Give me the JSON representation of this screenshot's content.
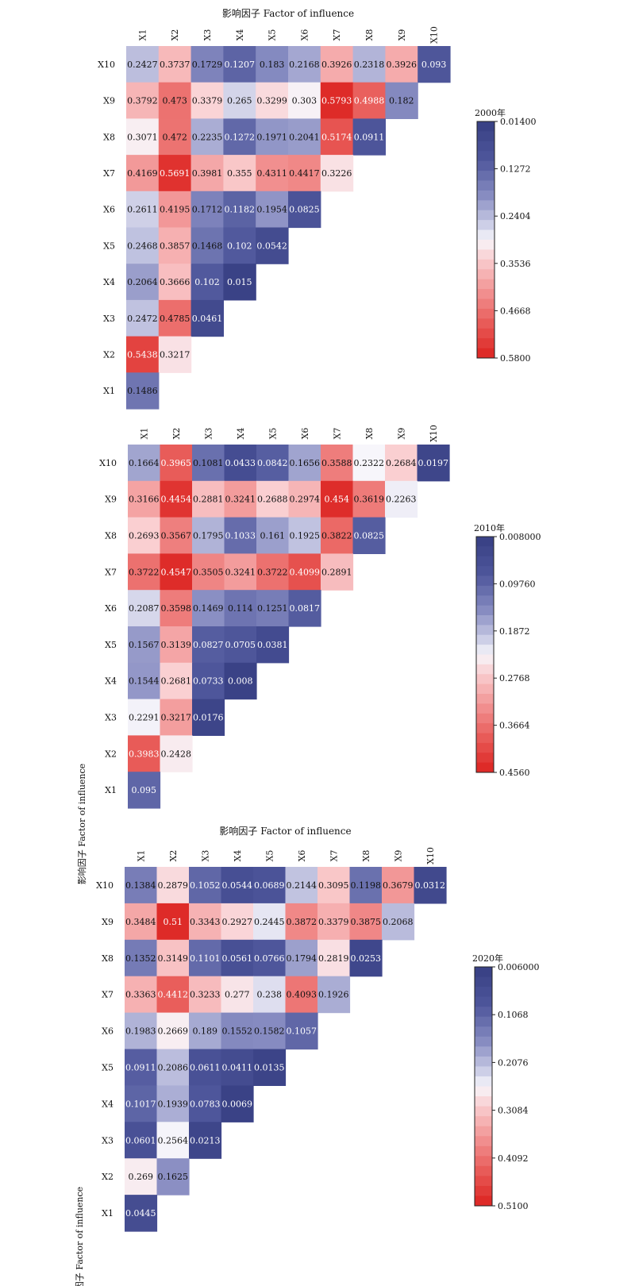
{
  "chart_data": [
    {
      "type": "heatmap",
      "title": "影响因子  Factor of influence",
      "xlabel": "",
      "ylabel": "",
      "x_labels": [
        "X1",
        "X2",
        "X3",
        "X4",
        "X5",
        "X6",
        "X7",
        "X8",
        "X9",
        "X10"
      ],
      "y_labels": [
        "X10",
        "X9",
        "X8",
        "X7",
        "X6",
        "X5",
        "X4",
        "X3",
        "X2",
        "X1"
      ],
      "colorbar": {
        "title": "2000年",
        "min": 0.014,
        "max": 0.58,
        "ticks": [
          "0.01400",
          "0.1272",
          "0.2404",
          "0.3536",
          "0.4668",
          "0.5800"
        ]
      },
      "values": [
        [
          "0.2427",
          "0.3737",
          "0.1729",
          "0.1207",
          "0.183",
          "0.2168",
          "0.3926",
          "0.2318",
          "0.3926",
          "0.093"
        ],
        [
          "0.3792",
          "0.473",
          "0.3379",
          "0.265",
          "0.3299",
          "0.303",
          "0.5793",
          "0.4988",
          "0.182"
        ],
        [
          "0.3071",
          "0.472",
          "0.2235",
          "0.1272",
          "0.1971",
          "0.2041",
          "0.5174",
          "0.0911"
        ],
        [
          "0.4169",
          "0.5691",
          "0.3981",
          "0.355",
          "0.4311",
          "0.4417",
          "0.3226"
        ],
        [
          "0.2611",
          "0.4195",
          "0.1712",
          "0.1182",
          "0.1954",
          "0.0825"
        ],
        [
          "0.2468",
          "0.3857",
          "0.1468",
          "0.102",
          "0.0542"
        ],
        [
          "0.2064",
          "0.3666",
          "0.102",
          "0.015"
        ],
        [
          "0.2472",
          "0.4785",
          "0.0461"
        ],
        [
          "0.5438",
          "0.3217"
        ],
        [
          "0.1486"
        ]
      ]
    },
    {
      "type": "heatmap",
      "title": "",
      "xlabel": "",
      "ylabel": "影响因子 Factor of influence",
      "x_labels": [
        "X1",
        "X2",
        "X3",
        "X4",
        "X5",
        "X6",
        "X7",
        "X8",
        "X9",
        "X10"
      ],
      "y_labels": [
        "X10",
        "X9",
        "X8",
        "X7",
        "X6",
        "X5",
        "X4",
        "X3",
        "X2",
        "X1"
      ],
      "colorbar": {
        "title": "2010年",
        "min": 0.008,
        "max": 0.456,
        "ticks": [
          "0.008000",
          "0.09760",
          "0.1872",
          "0.2768",
          "0.3664",
          "0.4560"
        ]
      },
      "values": [
        [
          "0.1664",
          "0.3965",
          "0.1081",
          "0.0433",
          "0.0842",
          "0.1656",
          "0.3588",
          "0.2322",
          "0.2684",
          "0.0197"
        ],
        [
          "0.3166",
          "0.4454",
          "0.2881",
          "0.3241",
          "0.2688",
          "0.2974",
          "0.454",
          "0.3619",
          "0.2263"
        ],
        [
          "0.2693",
          "0.3567",
          "0.1795",
          "0.1033",
          "0.161",
          "0.1925",
          "0.3822",
          "0.0825"
        ],
        [
          "0.3722",
          "0.4547",
          "0.3505",
          "0.3241",
          "0.3722",
          "0.4099",
          "0.2891"
        ],
        [
          "0.2087",
          "0.3598",
          "0.1469",
          "0.114",
          "0.1251",
          "0.0817"
        ],
        [
          "0.1567",
          "0.3139",
          "0.0827",
          "0.0705",
          "0.0381"
        ],
        [
          "0.1544",
          "0.2681",
          "0.0733",
          "0.008"
        ],
        [
          "0.2291",
          "0.3217",
          "0.0176"
        ],
        [
          "0.3983",
          "0.2428"
        ],
        [
          "0.095"
        ]
      ]
    },
    {
      "type": "heatmap",
      "title": "影响因子  Factor of influence",
      "xlabel": "",
      "ylabel": "影响因子 Factor of influence",
      "x_labels": [
        "X1",
        "X2",
        "X3",
        "X4",
        "X5",
        "X6",
        "X7",
        "X8",
        "X9",
        "X10"
      ],
      "y_labels": [
        "X10",
        "X9",
        "X8",
        "X7",
        "X6",
        "X5",
        "X4",
        "X3",
        "X2",
        "X1"
      ],
      "colorbar": {
        "title": "2020年",
        "min": 0.006,
        "max": 0.51,
        "ticks": [
          "0.006000",
          "0.1068",
          "0.2076",
          "0.3084",
          "0.4092",
          "0.5100"
        ]
      },
      "values": [
        [
          "0.1384",
          "0.2879",
          "0.1052",
          "0.0544",
          "0.0689",
          "0.2144",
          "0.3095",
          "0.1198",
          "0.3679",
          "0.0312"
        ],
        [
          "0.3484",
          "0.51",
          "0.3343",
          "0.2927",
          "0.2445",
          "0.3872",
          "0.3379",
          "0.3875",
          "0.2068"
        ],
        [
          "0.1352",
          "0.3149",
          "0.1101",
          "0.0561",
          "0.0766",
          "0.1794",
          "0.2819",
          "0.0253"
        ],
        [
          "0.3363",
          "0.4412",
          "0.3233",
          "0.277",
          "0.238",
          "0.4093",
          "0.1926"
        ],
        [
          "0.1983",
          "0.2669",
          "0.189",
          "0.1552",
          "0.1582",
          "0.1057"
        ],
        [
          "0.0911",
          "0.2086",
          "0.0611",
          "0.0411",
          "0.0135"
        ],
        [
          "0.1017",
          "0.1939",
          "0.0783",
          "0.0069"
        ],
        [
          "0.0601",
          "0.2564",
          "0.0213"
        ],
        [
          "0.269",
          "0.1625"
        ],
        [
          "0.0445"
        ]
      ]
    }
  ]
}
